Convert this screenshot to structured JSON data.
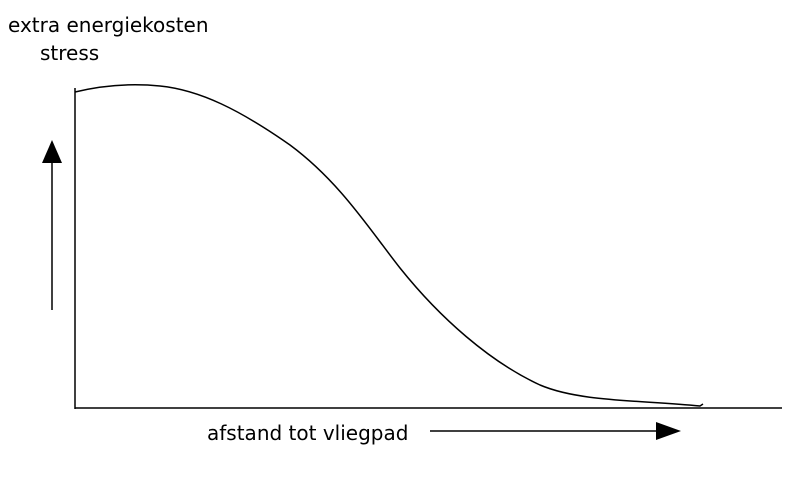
{
  "labels": {
    "y_axis": [
      "extra energiekosten",
      "stress"
    ],
    "x_axis": "afstand tot vliegpad"
  }
}
